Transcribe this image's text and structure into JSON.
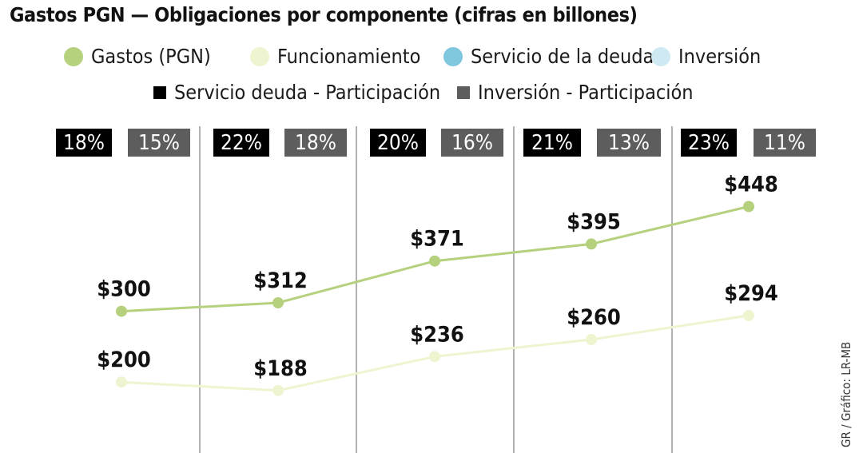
{
  "title": "Gastos PGN — Obligaciones por componente (cifras en billones)",
  "legend": [
    {
      "label": "Gastos (PGN)",
      "color": "#b5d17e",
      "shape": "circle"
    },
    {
      "label": "Funcionamiento",
      "color": "#eef3d0",
      "shape": "circle"
    },
    {
      "label": "Servicio de la deuda",
      "color": "#7fc7df",
      "shape": "circle"
    },
    {
      "label": "Inversión",
      "color": "#cfe9f3",
      "shape": "circle"
    },
    {
      "label": "Servicio deuda - Participación",
      "color": "#000000",
      "shape": "square"
    },
    {
      "label": "Inversión - Participación",
      "color": "#5d5d5d",
      "shape": "square"
    }
  ],
  "credit": "GR / Gráfico: LR-MB",
  "chart_data": {
    "type": "line",
    "title": "Gastos PGN — Obligaciones por componente (cifras en billones)",
    "x_labels_visible": false,
    "series": [
      {
        "name": "Gastos (PGN)",
        "color": "#b5d17e",
        "values": [
          300,
          312,
          371,
          395,
          448
        ],
        "labels": [
          "$300",
          "$312",
          "$371",
          "$395",
          "$448"
        ]
      },
      {
        "name": "Funcionamiento",
        "color": "#eef3d0",
        "values": [
          200,
          188,
          236,
          260,
          294
        ],
        "labels": [
          "$200",
          "$188",
          "$236",
          "$260",
          "$294"
        ]
      }
    ],
    "participation": [
      {
        "name": "Servicio deuda - Participación",
        "color": "#000000",
        "values": [
          18,
          22,
          20,
          21,
          23
        ],
        "labels": [
          "18%",
          "22%",
          "20%",
          "21%",
          "23%"
        ]
      },
      {
        "name": "Inversión - Participación",
        "color": "#5d5d5d",
        "values": [
          15,
          18,
          16,
          13,
          11
        ],
        "labels": [
          "15%",
          "18%",
          "16%",
          "13%",
          "11%"
        ]
      }
    ]
  }
}
